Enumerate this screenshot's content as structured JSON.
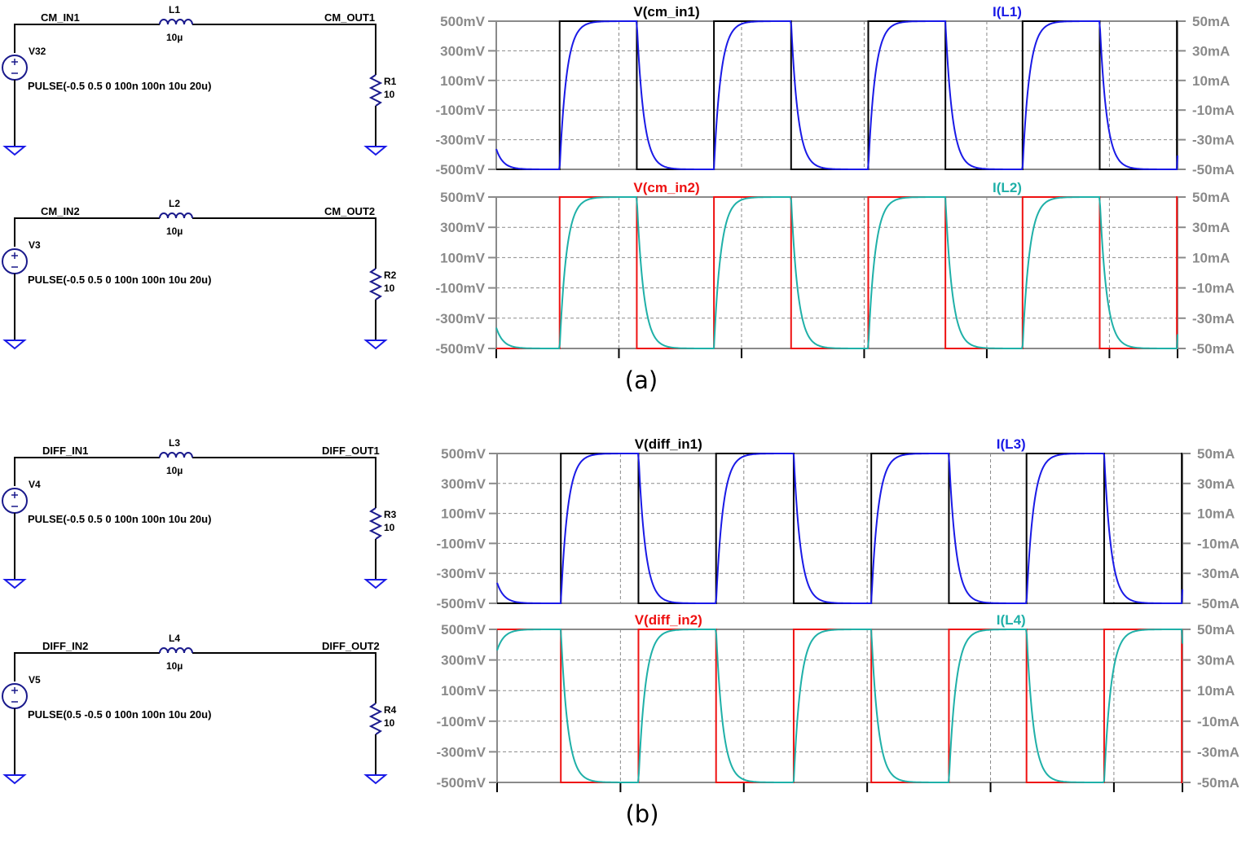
{
  "schematics": [
    {
      "in_net": "CM_IN1",
      "inductor": "L1",
      "ind_value": "10µ",
      "out_net": "CM_OUT1",
      "source": "V32",
      "pulse": "PULSE(-0.5 0.5 0 100n 100n 10u 20u)",
      "resistor": "R1",
      "res_value": "10"
    },
    {
      "in_net": "CM_IN2",
      "inductor": "L2",
      "ind_value": "10µ",
      "out_net": "CM_OUT2",
      "source": "V3",
      "pulse": "PULSE(-0.5 0.5 0 100n 100n 10u 20u)",
      "resistor": "R2",
      "res_value": "10"
    },
    {
      "in_net": "DIFF_IN1",
      "inductor": "L3",
      "ind_value": "10µ",
      "out_net": "DIFF_OUT1",
      "source": "V4",
      "pulse": "PULSE(-0.5 0.5 0 100n 100n 10u 20u)",
      "resistor": "R3",
      "res_value": "10"
    },
    {
      "in_net": "DIFF_IN2",
      "inductor": "L4",
      "ind_value": "10µ",
      "out_net": "DIFF_OUT2",
      "source": "V5",
      "pulse": "PULSE(0.5 -0.5 0 100n 100n 10u 20u)",
      "resistor": "R4",
      "res_value": "10"
    }
  ],
  "captions": [
    "(a)",
    "(b)"
  ],
  "colors": {
    "black": "#000000",
    "blue": "#1a1ae6",
    "red": "#ee1111",
    "teal": "#1fb0a8",
    "grid": "#8a8a8a",
    "schematic": "#000000",
    "component": "#1a1a8c",
    "ground": "#1a1ae6"
  },
  "chart_data": [
    {
      "type": "line",
      "left_axis_ticks": [
        "500mV",
        "300mV",
        "100mV",
        "-100mV",
        "-300mV",
        "-500mV"
      ],
      "right_axis_ticks": [
        "50mA",
        "30mA",
        "10mA",
        "-10mA",
        "-30mA",
        "-50mA"
      ],
      "series": [
        {
          "name": "V(cm_in1)",
          "color": "black",
          "kind": "square",
          "phase": "rising"
        },
        {
          "name": "I(L1)",
          "color": "blue",
          "kind": "exp",
          "phase": "rising"
        }
      ]
    },
    {
      "type": "line",
      "left_axis_ticks": [
        "500mV",
        "300mV",
        "100mV",
        "-100mV",
        "-300mV",
        "-500mV"
      ],
      "right_axis_ticks": [
        "50mA",
        "30mA",
        "10mA",
        "-10mA",
        "-30mA",
        "-50mA"
      ],
      "series": [
        {
          "name": "V(cm_in2)",
          "color": "red",
          "kind": "square",
          "phase": "rising"
        },
        {
          "name": "I(L2)",
          "color": "teal",
          "kind": "exp",
          "phase": "rising"
        }
      ]
    },
    {
      "type": "line",
      "left_axis_ticks": [
        "500mV",
        "300mV",
        "100mV",
        "-100mV",
        "-300mV",
        "-500mV"
      ],
      "right_axis_ticks": [
        "50mA",
        "30mA",
        "10mA",
        "-10mA",
        "-30mA",
        "-50mA"
      ],
      "series": [
        {
          "name": "V(diff_in1)",
          "color": "black",
          "kind": "square",
          "phase": "rising"
        },
        {
          "name": "I(L3)",
          "color": "blue",
          "kind": "exp",
          "phase": "rising"
        }
      ]
    },
    {
      "type": "line",
      "left_axis_ticks": [
        "500mV",
        "300mV",
        "100mV",
        "-100mV",
        "-300mV",
        "-500mV"
      ],
      "right_axis_ticks": [
        "50mA",
        "30mA",
        "10mA",
        "-10mA",
        "-30mA",
        "-50mA"
      ],
      "series": [
        {
          "name": "V(diff_in2)",
          "color": "red",
          "kind": "square",
          "phase": "falling"
        },
        {
          "name": "I(L4)",
          "color": "teal",
          "kind": "exp",
          "phase": "falling"
        }
      ]
    }
  ]
}
